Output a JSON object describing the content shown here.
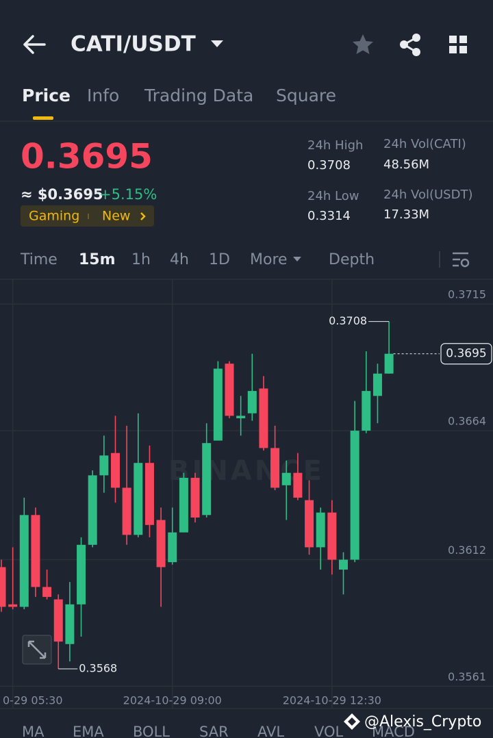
{
  "header": {
    "pair": "CATI/USDT"
  },
  "tabs": [
    "Price",
    "Info",
    "Trading Data",
    "Square"
  ],
  "ticker": {
    "price": "0.3695",
    "approx": "≈ $0.3695",
    "change": "+5.15%",
    "tags": [
      "Gaming",
      "New"
    ]
  },
  "stats": [
    {
      "label": "24h High",
      "value": "0.3708"
    },
    {
      "label": "24h Low",
      "value": "0.3314"
    },
    {
      "label": "24h Vol(CATI)",
      "value": "48.56M"
    },
    {
      "label": "24h Vol(USDT)",
      "value": "17.33M"
    }
  ],
  "intervals": [
    "Time",
    "15m",
    "1h",
    "4h",
    "1D",
    "More",
    "Depth"
  ],
  "chart_data": {
    "type": "candlestick",
    "watermark": "BINANCE",
    "categories": [
      null,
      "0-29 05:30",
      null,
      null,
      null,
      null,
      null,
      null,
      null,
      null,
      null,
      null,
      null,
      null,
      null,
      "2024-10-29 09:00",
      null,
      null,
      null,
      null,
      null,
      null,
      null,
      null,
      null,
      null,
      null,
      null,
      null,
      "2024-10-29 12:30",
      null,
      null,
      null,
      null,
      null
    ],
    "open": [
      0.3609,
      0.3594,
      0.3593,
      0.363,
      0.3601,
      0.3596,
      0.3578,
      0.3594,
      0.3618,
      0.3646,
      0.3655,
      0.3641,
      0.3622,
      0.3651,
      0.3628,
      0.3611,
      0.3623,
      0.3645,
      0.363,
      0.366,
      0.3691,
      0.3669,
      0.3671,
      0.3681,
      0.3657,
      0.3642,
      0.3647,
      0.3636,
      0.3617,
      0.3631,
      0.3608,
      0.3612,
      0.3664,
      0.3678,
      0.3687
    ],
    "high": [
      0.3612,
      0.3617,
      0.3637,
      0.3633,
      0.3608,
      0.3598,
      0.3603,
      0.3621,
      0.3648,
      0.3662,
      0.367,
      0.3666,
      0.3671,
      0.3658,
      0.3633,
      0.3633,
      0.3647,
      0.3647,
      0.3667,
      0.3692,
      0.3692,
      0.3678,
      0.3695,
      0.3686,
      0.3666,
      0.3652,
      0.3655,
      0.3644,
      0.3633,
      0.3636,
      0.3615,
      0.3676,
      0.3696,
      0.3691,
      0.3708
    ],
    "low": [
      0.3591,
      0.3592,
      0.3592,
      0.3597,
      0.3596,
      0.3568,
      0.3571,
      0.3581,
      0.3617,
      0.3639,
      0.3635,
      0.3618,
      0.3621,
      0.3621,
      0.3593,
      0.361,
      0.3623,
      0.3627,
      0.3629,
      0.366,
      0.3669,
      0.3662,
      0.3668,
      0.3656,
      0.364,
      0.3628,
      0.3636,
      0.3614,
      0.3608,
      0.3606,
      0.3598,
      0.3611,
      0.3663,
      0.3667,
      0.3687
    ],
    "close": [
      0.3593,
      0.3593,
      0.363,
      0.3601,
      0.3597,
      0.3579,
      0.3594,
      0.3618,
      0.3646,
      0.3654,
      0.3641,
      0.3622,
      0.3651,
      0.3626,
      0.3609,
      0.3623,
      0.3645,
      0.3629,
      0.3659,
      0.3689,
      0.367,
      0.367,
      0.368,
      0.3657,
      0.3641,
      0.3647,
      0.3637,
      0.3617,
      0.3631,
      0.3612,
      0.3612,
      0.3664,
      0.368,
      0.3687,
      0.3695
    ],
    "up_color": "#2ebd85",
    "down_color": "#f6465d",
    "ylim": [
      0.3552,
      0.3725
    ],
    "yticks": [
      0.3715,
      0.3664,
      0.3612,
      0.3561
    ],
    "grid": true
  },
  "indicators": [
    "MA",
    "EMA",
    "BOLL",
    "SAR",
    "AVL",
    "VOL",
    "MACD"
  ],
  "watermark": "@Alexis_Crypto"
}
